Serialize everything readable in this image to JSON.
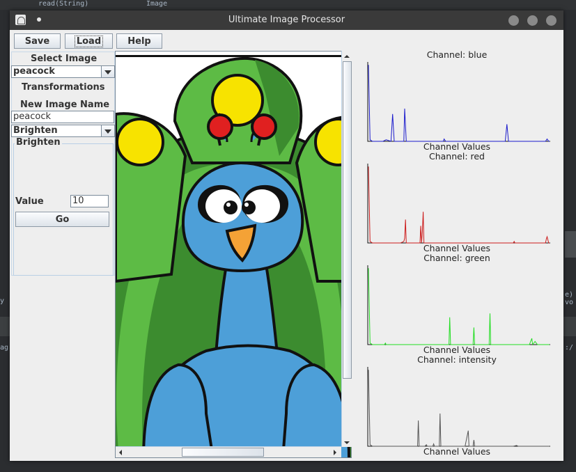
{
  "background": {
    "fragments": [
      "read(String)",
      "Image",
      "y",
      "ag",
      "e) vo",
      ":/"
    ]
  },
  "window": {
    "title": "Ultimate Image Processor"
  },
  "toolbar": {
    "save_label": "Save",
    "load_label": "Load",
    "help_label": "Help"
  },
  "sidebar": {
    "select_image_label": "Select Image",
    "selected_image": "peacock",
    "transformations_label": "Transformations",
    "new_image_name_label": "New Image Name",
    "new_image_name_value": "peacock",
    "transformation_selected": "Brighten",
    "panel_title": "Brighten",
    "value_label": "Value",
    "value_input": "10",
    "go_label": "Go"
  },
  "colors": {
    "blue_channel": "#1a1acc",
    "red_channel": "#cc1a1a",
    "green_channel": "#22dd22",
    "intensity_channel": "#555555"
  },
  "chart_data": [
    {
      "type": "line",
      "title": "Channel: blue",
      "xlabel": "Channel Values",
      "series": [
        {
          "name": "",
          "values": [
            [
              0,
              0.98
            ],
            [
              2,
              0.02
            ],
            [
              5,
              0
            ],
            [
              10,
              0
            ],
            [
              18,
              0
            ],
            [
              22,
              0.02
            ],
            [
              28,
              0
            ],
            [
              30,
              0.35
            ],
            [
              32,
              0
            ],
            [
              40,
              0
            ],
            [
              44,
              0
            ],
            [
              45,
              0.42
            ],
            [
              47,
              0
            ],
            [
              60,
              0
            ],
            [
              80,
              0
            ],
            [
              93,
              0
            ],
            [
              94,
              0.03
            ],
            [
              96,
              0
            ],
            [
              120,
              0
            ],
            [
              150,
              0
            ],
            [
              170,
              0
            ],
            [
              172,
              0.22
            ],
            [
              174,
              0
            ],
            [
              200,
              0
            ],
            [
              220,
              0
            ],
            [
              222,
              0.03
            ],
            [
              224,
              0
            ],
            [
              225,
              0
            ]
          ]
        }
      ],
      "xlim": [
        0,
        225
      ]
    },
    {
      "type": "line",
      "title": "Channel: red",
      "xlabel": "Channel Values",
      "series": [
        {
          "name": "",
          "values": [
            [
              0,
              0.98
            ],
            [
              2,
              0.02
            ],
            [
              5,
              0
            ],
            [
              20,
              0
            ],
            [
              40,
              0
            ],
            [
              44,
              0.02
            ],
            [
              45,
              0.06
            ],
            [
              46,
              0.3
            ],
            [
              47,
              0
            ],
            [
              60,
              0
            ],
            [
              64,
              0
            ],
            [
              65,
              0.22
            ],
            [
              66,
              0
            ],
            [
              67,
              0.14
            ],
            [
              68,
              0.4
            ],
            [
              69,
              0
            ],
            [
              80,
              0
            ],
            [
              100,
              0
            ],
            [
              150,
              0
            ],
            [
              170,
              0
            ],
            [
              180,
              0
            ],
            [
              181,
              0.02
            ],
            [
              182,
              0
            ],
            [
              220,
              0
            ],
            [
              221,
              0.05
            ],
            [
              222,
              0.08
            ],
            [
              224,
              0
            ],
            [
              225,
              0
            ]
          ]
        }
      ],
      "xlim": [
        0,
        225
      ]
    },
    {
      "type": "line",
      "title": "Channel: green",
      "xlabel": "Channel Values",
      "series": [
        {
          "name": "",
          "values": [
            [
              0,
              0.98
            ],
            [
              2,
              0.02
            ],
            [
              5,
              0
            ],
            [
              20,
              0
            ],
            [
              21,
              0.02
            ],
            [
              22,
              0
            ],
            [
              60,
              0
            ],
            [
              100,
              0
            ],
            [
              101,
              0.35
            ],
            [
              102,
              0
            ],
            [
              130,
              0
            ],
            [
              131,
              0.22
            ],
            [
              132,
              0
            ],
            [
              150,
              0
            ],
            [
              151,
              0.4
            ],
            [
              152,
              0
            ],
            [
              200,
              0
            ],
            [
              203,
              0.08
            ],
            [
              204,
              0
            ],
            [
              207,
              0.04
            ],
            [
              210,
              0
            ],
            [
              225,
              0
            ]
          ]
        }
      ],
      "xlim": [
        0,
        225
      ]
    },
    {
      "type": "line",
      "title": "Channel: intensity",
      "xlabel": "Channel Values",
      "series": [
        {
          "name": "",
          "values": [
            [
              0,
              0.98
            ],
            [
              2,
              0.02
            ],
            [
              5,
              0
            ],
            [
              50,
              0
            ],
            [
              61,
              0
            ],
            [
              62,
              0.33
            ],
            [
              63,
              0
            ],
            [
              70,
              0
            ],
            [
              72,
              0.02
            ],
            [
              73,
              0
            ],
            [
              80,
              0
            ],
            [
              81,
              0.03
            ],
            [
              82,
              0
            ],
            [
              88,
              0
            ],
            [
              89,
              0.42
            ],
            [
              90,
              0
            ],
            [
              120,
              0
            ],
            [
              124,
              0.2
            ],
            [
              125,
              0
            ],
            [
              130,
              0
            ],
            [
              131,
              0.08
            ],
            [
              132,
              0
            ],
            [
              180,
              0
            ],
            [
              184,
              0.01
            ],
            [
              186,
              0
            ],
            [
              225,
              0
            ]
          ]
        }
      ],
      "xlim": [
        0,
        225
      ]
    }
  ]
}
